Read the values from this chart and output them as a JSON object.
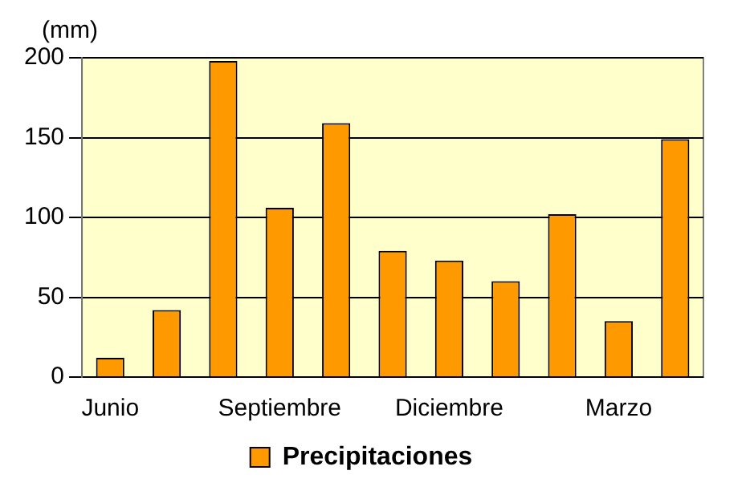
{
  "chart_data": {
    "type": "bar",
    "ylabel": "(mm)",
    "categories": [
      "Junio",
      null,
      null,
      "Septiembre",
      null,
      null,
      "Diciembre",
      null,
      null,
      "Marzo",
      null
    ],
    "series": [
      {
        "name": "Precipitaciones",
        "color": "#ff9900",
        "values": [
          12,
          42,
          198,
          106,
          159,
          79,
          73,
          60,
          102,
          35,
          149
        ]
      }
    ],
    "ylim": [
      0,
      200
    ],
    "yticks": [
      0,
      50,
      100,
      150,
      200
    ],
    "grid": "y",
    "legend": "bottom"
  }
}
